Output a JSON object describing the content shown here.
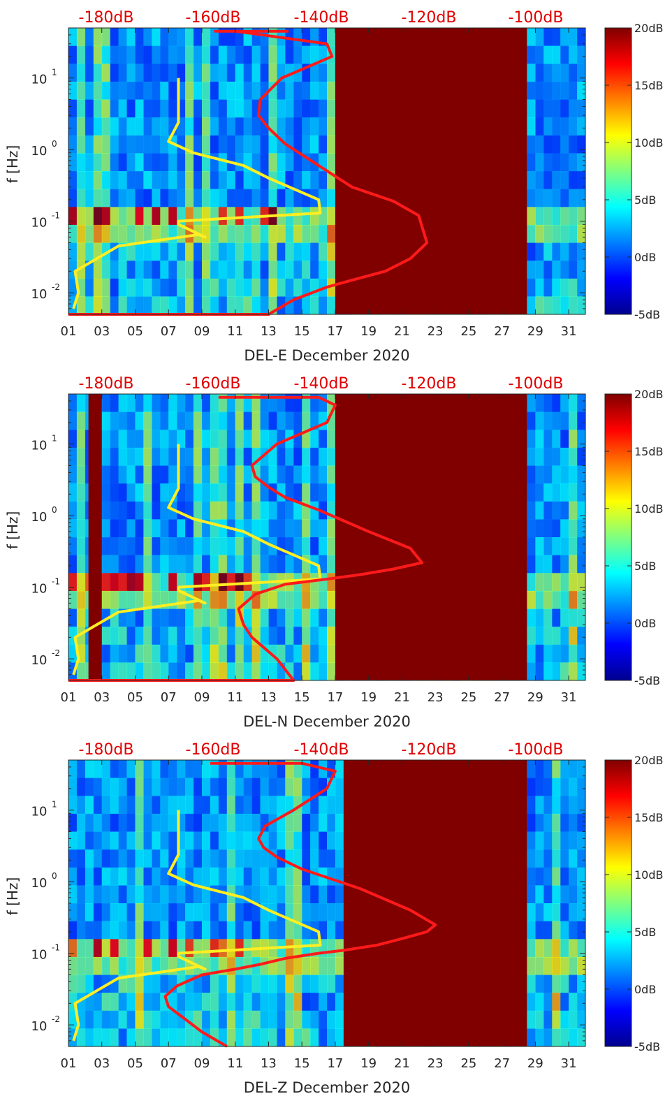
{
  "colors": {
    "spectrogram_low": "#00008f",
    "spectrogram_high": "#800000",
    "gap_fill": "#800000",
    "red_curve": "#ff1a1a",
    "yellow_curve": "#ffee22",
    "top_axis_text": "#e00000",
    "axis_text": "#262626"
  },
  "chart_data": [
    {
      "type": "heatmap",
      "xlabel": "DEL-E December 2020",
      "ylabel": "f [Hz]",
      "x_ticks": [
        "01",
        "03",
        "05",
        "07",
        "09",
        "11",
        "13",
        "15",
        "17",
        "19",
        "21",
        "23",
        "25",
        "27",
        "29",
        "31"
      ],
      "y_ticks": [
        {
          "base": "10",
          "exp": "1"
        },
        {
          "base": "10",
          "exp": "0"
        },
        {
          "base": "10",
          "exp": "-1"
        },
        {
          "base": "10",
          "exp": "-2"
        }
      ],
      "y_scale": "log",
      "xlim": [
        1,
        32
      ],
      "ylim": [
        0.005,
        50
      ],
      "top_axis_ticks": [
        "-180dB",
        "-160dB",
        "-140dB",
        "-120dB",
        "-100dB"
      ],
      "colorbar": {
        "colormap": "jet",
        "ticks": [
          "20dB",
          "15dB",
          "10dB",
          "5dB",
          "0dB",
          "-5dB"
        ],
        "range": [
          -5,
          20
        ]
      },
      "data_gaps": [
        [
          17.0,
          28.5
        ]
      ],
      "red_curve": {
        "x": [
          1,
          12.5,
          13,
          14.5,
          16.5,
          18,
          20,
          21.5,
          22.5,
          22,
          20.5,
          18,
          16,
          14,
          13,
          12.4,
          12.5,
          13.8,
          16.8,
          16.5,
          11,
          9.8,
          10.5,
          11.5,
          13,
          14.2
        ],
        "y": [
          0.002,
          0.003,
          0.005,
          0.008,
          0.012,
          0.015,
          0.02,
          0.03,
          0.05,
          0.12,
          0.19,
          0.3,
          0.6,
          1.2,
          2,
          3,
          5,
          10,
          20,
          30,
          45,
          45,
          45,
          45,
          45,
          45
        ]
      },
      "yellow_curve": {
        "x": [
          1.3,
          1.6,
          1.4,
          4,
          8.8,
          9.2,
          7.6,
          7.6,
          16.1,
          16,
          13,
          11.5,
          8.5,
          7,
          7.6,
          7.6,
          7.6
        ],
        "y": [
          0.006,
          0.01,
          0.02,
          0.045,
          0.065,
          0.06,
          0.09,
          0.1,
          0.13,
          0.2,
          0.4,
          0.6,
          0.9,
          1.3,
          2.4,
          5,
          10
        ]
      }
    },
    {
      "type": "heatmap",
      "xlabel": "DEL-N December 2020",
      "ylabel": "f [Hz]",
      "x_ticks": [
        "01",
        "03",
        "05",
        "07",
        "09",
        "11",
        "13",
        "15",
        "17",
        "19",
        "21",
        "23",
        "25",
        "27",
        "29",
        "31"
      ],
      "y_ticks": [
        {
          "base": "10",
          "exp": "1"
        },
        {
          "base": "10",
          "exp": "0"
        },
        {
          "base": "10",
          "exp": "-1"
        },
        {
          "base": "10",
          "exp": "-2"
        }
      ],
      "y_scale": "log",
      "xlim": [
        1,
        32
      ],
      "ylim": [
        0.005,
        50
      ],
      "top_axis_ticks": [
        "-180dB",
        "-160dB",
        "-140dB",
        "-120dB",
        "-100dB"
      ],
      "colorbar": {
        "colormap": "jet",
        "ticks": [
          "20dB",
          "15dB",
          "10dB",
          "5dB",
          "0dB",
          "-5dB"
        ],
        "range": [
          -5,
          20
        ]
      },
      "data_gaps": [
        [
          2.2,
          3.0
        ],
        [
          17.0,
          28.5
        ]
      ],
      "red_curve": {
        "x": [
          1,
          14.5,
          13.5,
          12,
          11.5,
          11.2,
          12.2,
          14,
          16.5,
          18.5,
          20.5,
          22.2,
          21.5,
          19,
          16,
          14,
          13,
          12.2,
          12,
          13.5,
          16.5,
          17,
          16,
          11,
          10
        ],
        "y": [
          0.002,
          0.005,
          0.01,
          0.02,
          0.03,
          0.05,
          0.08,
          0.11,
          0.13,
          0.15,
          0.18,
          0.22,
          0.35,
          0.6,
          1.2,
          1.8,
          2.5,
          3.5,
          5,
          10,
          20,
          35,
          45,
          45,
          45
        ]
      },
      "yellow_curve": {
        "x": [
          1.3,
          1.6,
          1.4,
          4,
          8.8,
          9.2,
          7.6,
          7.6,
          16.1,
          16,
          13,
          11.5,
          8.5,
          7,
          7.6,
          7.6,
          7.6
        ],
        "y": [
          0.006,
          0.01,
          0.02,
          0.045,
          0.065,
          0.06,
          0.09,
          0.1,
          0.13,
          0.2,
          0.4,
          0.6,
          0.9,
          1.3,
          2.4,
          5,
          10
        ]
      }
    },
    {
      "type": "heatmap",
      "xlabel": "DEL-Z December 2020",
      "ylabel": "f [Hz]",
      "x_ticks": [
        "01",
        "03",
        "05",
        "07",
        "09",
        "11",
        "13",
        "15",
        "17",
        "19",
        "21",
        "23",
        "25",
        "27",
        "29",
        "31"
      ],
      "y_ticks": [
        {
          "base": "10",
          "exp": "1"
        },
        {
          "base": "10",
          "exp": "0"
        },
        {
          "base": "10",
          "exp": "-1"
        },
        {
          "base": "10",
          "exp": "-2"
        }
      ],
      "y_scale": "log",
      "xlim": [
        1,
        32
      ],
      "ylim": [
        0.005,
        50
      ],
      "top_axis_ticks": [
        "-180dB",
        "-160dB",
        "-140dB",
        "-120dB",
        "-100dB"
      ],
      "colorbar": {
        "colormap": "jet",
        "ticks": [
          "20dB",
          "15dB",
          "10dB",
          "5dB",
          "0dB",
          "-5dB"
        ],
        "range": [
          -5,
          20
        ]
      },
      "data_gaps": [
        [
          17.5,
          28.5
        ]
      ],
      "red_curve": {
        "x": [
          10.5,
          9,
          8,
          7,
          6.8,
          7.5,
          9,
          11,
          12.5,
          14,
          16,
          17.5,
          19.5,
          21,
          22.5,
          23,
          21.5,
          18.5,
          15,
          13.5,
          12.7,
          12.4,
          12.8,
          14.5,
          16.5,
          17,
          15,
          11,
          9.5
        ],
        "y": [
          0.005,
          0.008,
          0.012,
          0.018,
          0.025,
          0.035,
          0.05,
          0.06,
          0.07,
          0.085,
          0.1,
          0.11,
          0.13,
          0.16,
          0.2,
          0.25,
          0.4,
          0.8,
          1.5,
          2.2,
          3,
          4,
          6,
          10,
          20,
          35,
          45,
          45,
          45
        ]
      },
      "yellow_curve": {
        "x": [
          1.3,
          1.6,
          1.4,
          4,
          8.8,
          9.2,
          7.6,
          7.6,
          16.1,
          16,
          13,
          11.5,
          8.5,
          7,
          7.6,
          7.6,
          7.6
        ],
        "y": [
          0.006,
          0.01,
          0.02,
          0.045,
          0.065,
          0.06,
          0.09,
          0.1,
          0.13,
          0.2,
          0.4,
          0.6,
          0.9,
          1.3,
          2.4,
          5,
          10
        ]
      }
    }
  ]
}
